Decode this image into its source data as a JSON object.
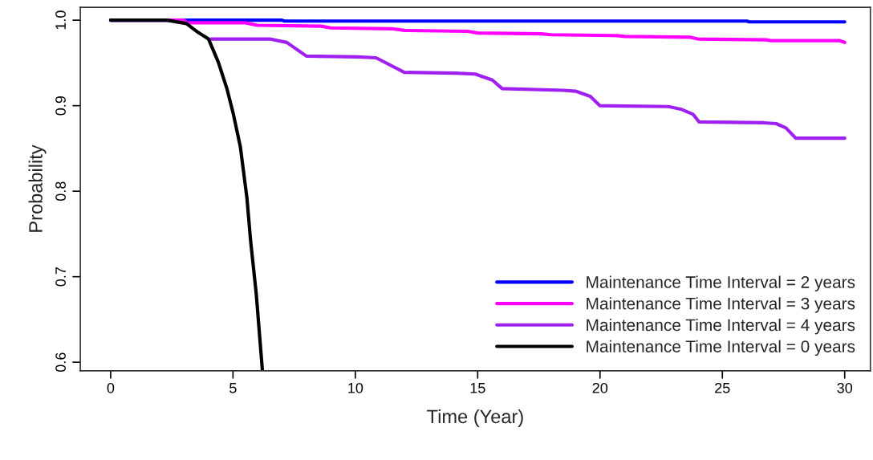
{
  "chart_data": {
    "type": "line",
    "xlabel": "Time (Year)",
    "ylabel": "Probability",
    "xlim": [
      -1.24,
      31.05
    ],
    "ylim": [
      0.59,
      1.015
    ],
    "xticks": [
      0,
      5,
      10,
      15,
      20,
      25,
      30
    ],
    "yticks": [
      {
        "value": 0.6,
        "label": "0.6"
      },
      {
        "value": 0.7,
        "label": "0.7"
      },
      {
        "value": 0.8,
        "label": "0.8"
      },
      {
        "value": 0.9,
        "label": "0.9"
      },
      {
        "value": 1.0,
        "label": "1.0"
      }
    ],
    "grid": false,
    "legend": "bottom right",
    "marker": "none",
    "line_style": "solid",
    "series": [
      {
        "name": "Maintenance Time Interval = 2 years",
        "color": "#0000ff",
        "x": [
          0,
          7,
          7.1,
          26,
          26.1,
          30
        ],
        "values": [
          1.0,
          1.0,
          0.999,
          0.999,
          0.998,
          0.998
        ]
      },
      {
        "name": "Maintenance Time Interval = 3 years",
        "color": "#ff00ff",
        "x": [
          0,
          3,
          3.1,
          5.5,
          6,
          8.6,
          9,
          11.5,
          12,
          14.6,
          15,
          17.6,
          18,
          20.7,
          21,
          23.7,
          24,
          26.8,
          27,
          29.8,
          30
        ],
        "values": [
          1.0,
          1.0,
          0.997,
          0.997,
          0.994,
          0.993,
          0.991,
          0.99,
          0.988,
          0.987,
          0.985,
          0.984,
          0.983,
          0.982,
          0.981,
          0.98,
          0.978,
          0.977,
          0.976,
          0.976,
          0.974
        ]
      },
      {
        "name": "Maintenance Time Interval = 4 years",
        "color": "#a020f0",
        "x": [
          4.1,
          6.5,
          7.2,
          8.0,
          10.1,
          10.85,
          12.0,
          14.1,
          14.9,
          15.6,
          16.0,
          18.5,
          19.0,
          19.6,
          20.0,
          22.8,
          23.3,
          23.8,
          24.05,
          26.7,
          27.2,
          27.6,
          28.0,
          30
        ],
        "values": [
          0.978,
          0.978,
          0.974,
          0.958,
          0.957,
          0.956,
          0.939,
          0.938,
          0.937,
          0.93,
          0.92,
          0.918,
          0.917,
          0.911,
          0.9,
          0.899,
          0.896,
          0.89,
          0.881,
          0.88,
          0.879,
          0.874,
          0.862,
          0.862
        ]
      },
      {
        "name": "Maintenance Time Interval = 0 years",
        "color": "#000000",
        "x": [
          0,
          2.3,
          3.1,
          3.56,
          4.0,
          4.4,
          4.75,
          5.0,
          5.3,
          5.57,
          5.72,
          5.95,
          6.2
        ],
        "values": [
          1.0,
          1.0,
          0.996,
          0.986,
          0.978,
          0.951,
          0.92,
          0.892,
          0.852,
          0.792,
          0.742,
          0.68,
          0.591
        ]
      }
    ]
  }
}
